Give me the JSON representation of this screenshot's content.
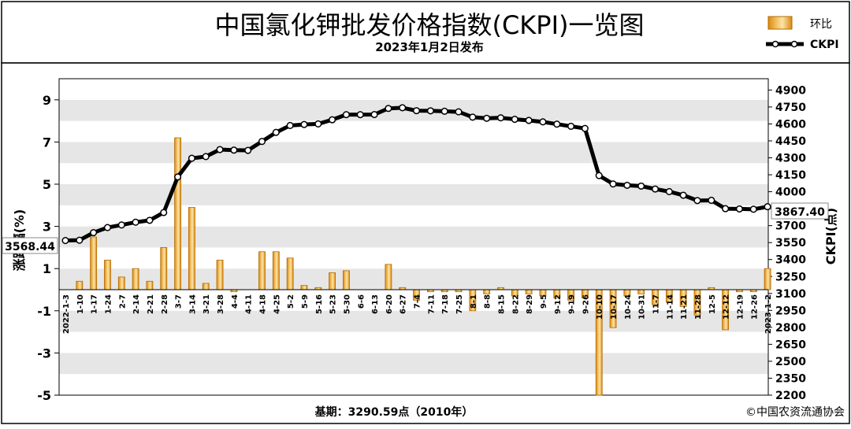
{
  "chart_data": {
    "type": "bar+line",
    "title": "中国氯化钾批发价格指数(CKPI)一览图",
    "subtitle": "2023年1月2日发布",
    "left_axis_label": "涨跌幅(%)",
    "right_axis_label": "CKPI(点)",
    "footer_base": "基期：3290.59点（2010年）",
    "footer_source": "©中国农资流通协会",
    "legend": [
      {
        "label": "环比",
        "type": "bar"
      },
      {
        "label": "CKPI",
        "type": "line"
      }
    ],
    "left_axis": {
      "min": -5,
      "max": 10,
      "ticks": [
        -5,
        -3,
        -1,
        1,
        3,
        5,
        7,
        9
      ]
    },
    "right_axis": {
      "min": 2200,
      "max": 5000,
      "ticks": [
        2200,
        2350,
        2500,
        2650,
        2800,
        2950,
        3100,
        3250,
        3400,
        3550,
        3700,
        3850,
        4000,
        4150,
        4300,
        4450,
        4600,
        4750,
        4900
      ]
    },
    "categories": [
      "2022-1-3",
      "1-10",
      "1-17",
      "1-24",
      "2-7",
      "2-14",
      "2-21",
      "2-28",
      "3-7",
      "3-14",
      "3-21",
      "3-28",
      "4-4",
      "4-11",
      "4-18",
      "4-25",
      "5-2",
      "5-9",
      "5-16",
      "5-23",
      "5-30",
      "6-6",
      "6-13",
      "6-20",
      "6-27",
      "7-4",
      "7-11",
      "7-18",
      "7-25",
      "8-1",
      "8-8",
      "8-15",
      "8-22",
      "8-29",
      "9-5",
      "9-12",
      "9-19",
      "9-26",
      "10-10",
      "10-17",
      "10-24",
      "10-31",
      "11-7",
      "11-14",
      "11-21",
      "11-28",
      "12-5",
      "12-12",
      "12-19",
      "12-26",
      "2023-1-2"
    ],
    "series": [
      {
        "name": "环比",
        "axis": "left",
        "values": [
          0.0,
          0.4,
          2.5,
          1.4,
          0.6,
          1.0,
          0.4,
          2.0,
          7.2,
          3.9,
          0.3,
          1.4,
          -0.1,
          0.0,
          1.8,
          1.8,
          1.5,
          0.2,
          0.1,
          0.8,
          0.9,
          0.0,
          0.0,
          1.2,
          0.1,
          -0.5,
          -0.1,
          -0.1,
          -0.1,
          -1.0,
          -0.2,
          0.1,
          -0.3,
          -0.2,
          -0.3,
          -0.4,
          -0.5,
          -0.4,
          -5.0,
          -1.8,
          -0.3,
          -0.2,
          -0.7,
          -0.6,
          -0.8,
          -1.2,
          0.1,
          -1.9,
          -0.1,
          -0.1,
          1.0
        ]
      },
      {
        "name": "CKPI",
        "axis": "right",
        "values": [
          3568.44,
          3571,
          3638,
          3683,
          3706,
          3730,
          3747,
          3816,
          4131,
          4296,
          4311,
          4373,
          4368,
          4366,
          4445,
          4525,
          4586,
          4595,
          4600,
          4637,
          4682,
          4682,
          4683,
          4737,
          4743,
          4717,
          4716,
          4712,
          4707,
          4660,
          4650,
          4654,
          4641,
          4631,
          4618,
          4598,
          4579,
          4560,
          4143,
          4069,
          4057,
          4050,
          4024,
          4001,
          3969,
          3922,
          3924,
          3850,
          3848,
          3845,
          3867.4
        ]
      }
    ],
    "annotations": {
      "ckpi_start": "3568.44",
      "ckpi_end": "3867.40"
    }
  }
}
